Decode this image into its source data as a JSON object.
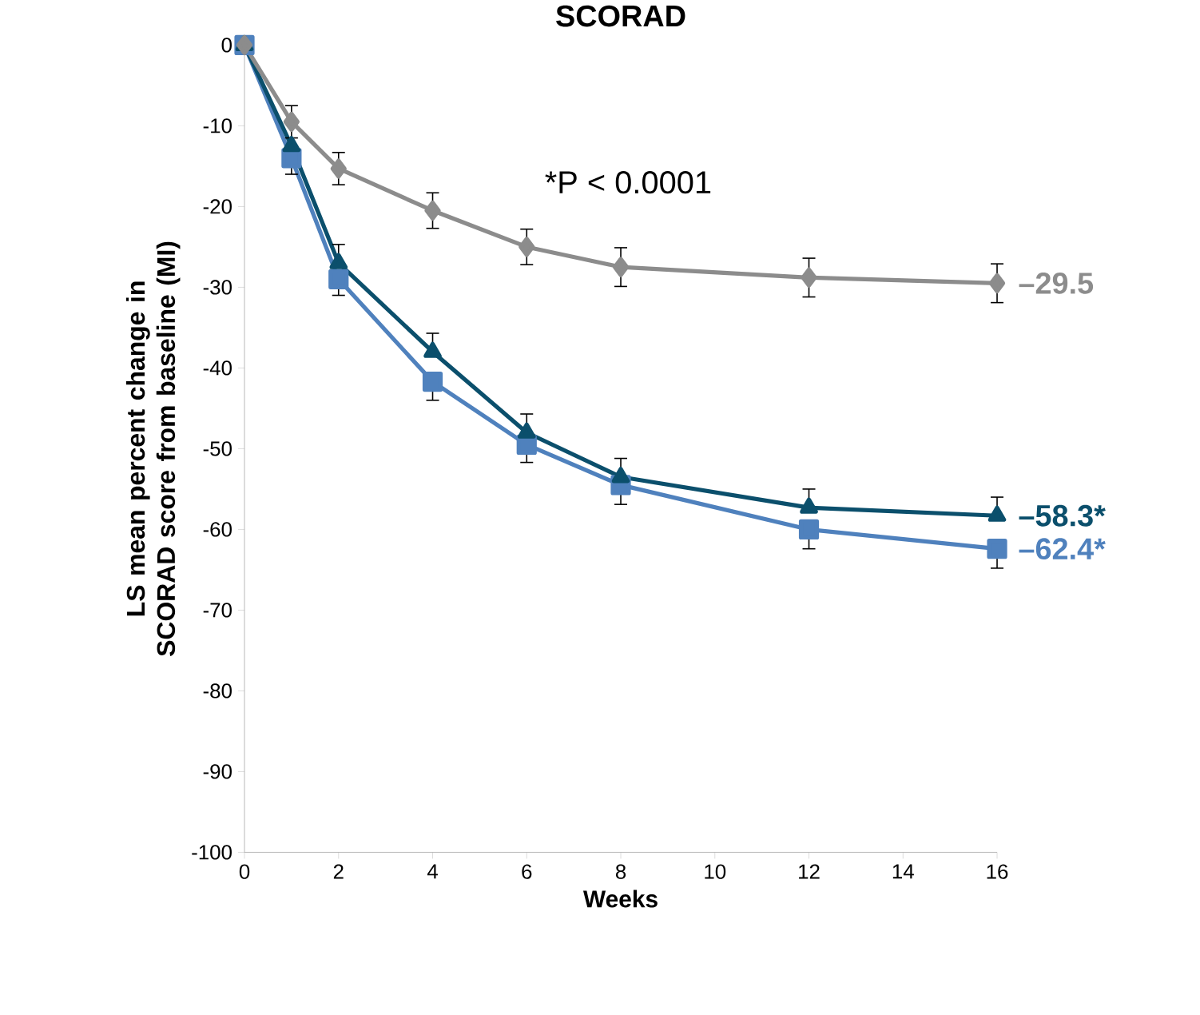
{
  "chart_data": {
    "type": "line",
    "title": "SCORAD",
    "xlabel": "Weeks",
    "ylabel": "LS mean percent change in SCORAD score from baseline (MI)",
    "annotations": [
      "*P < 0.0001"
    ],
    "xlim": [
      0,
      16
    ],
    "xticks": [
      0,
      2,
      4,
      6,
      8,
      10,
      12,
      14,
      16
    ],
    "ylim": [
      -100,
      0
    ],
    "yticks": [
      -100,
      -90,
      -80,
      -70,
      -60,
      -50,
      -40,
      -30,
      -20,
      -10,
      0
    ],
    "grid": false,
    "line_style": "solid",
    "x": [
      0,
      1,
      2,
      4,
      6,
      8,
      12,
      16
    ],
    "series": [
      {
        "color": "#8c8c8c",
        "marker": "diamond",
        "values": [
          0,
          -9.5,
          -15.3,
          -20.5,
          -25,
          -27.5,
          -28.8,
          -29.5
        ],
        "errors": [
          null,
          2,
          2,
          2.2,
          2.2,
          2.4,
          2.4,
          2.4
        ],
        "value_labels": [
          null,
          null,
          null,
          null,
          null,
          null,
          null,
          "–29.5"
        ]
      },
      {
        "color": "#0b4f6c",
        "marker": "triangle",
        "values": [
          0,
          -12.5,
          -27,
          -38,
          -48,
          -53.5,
          -57.3,
          -58.3
        ],
        "errors": [
          null,
          null,
          [
            -27,
            -24.7
          ],
          [
            -38,
            -35.7
          ],
          [
            -48,
            -45.7
          ],
          [
            -53.5,
            -51.2
          ],
          [
            -57.3,
            -55
          ],
          [
            -58.3,
            -56
          ]
        ],
        "value_labels": [
          null,
          null,
          null,
          null,
          null,
          null,
          null,
          "–58.3*"
        ]
      },
      {
        "color": "#4f81bd",
        "marker": "square",
        "values": [
          0,
          -14,
          -29,
          -41.7,
          -49.5,
          -54.5,
          -60,
          -62.4
        ],
        "errors": [
          null,
          [
            -16,
            -14
          ],
          [
            -31,
            -29
          ],
          [
            -44,
            -41.7
          ],
          [
            -51.7,
            -49.5
          ],
          [
            -56.9,
            -54.5
          ],
          [
            -62.4,
            -60
          ],
          [
            -64.8,
            -62.4
          ]
        ],
        "value_labels": [
          null,
          null,
          null,
          null,
          null,
          null,
          null,
          "–62.4*"
        ]
      }
    ]
  }
}
